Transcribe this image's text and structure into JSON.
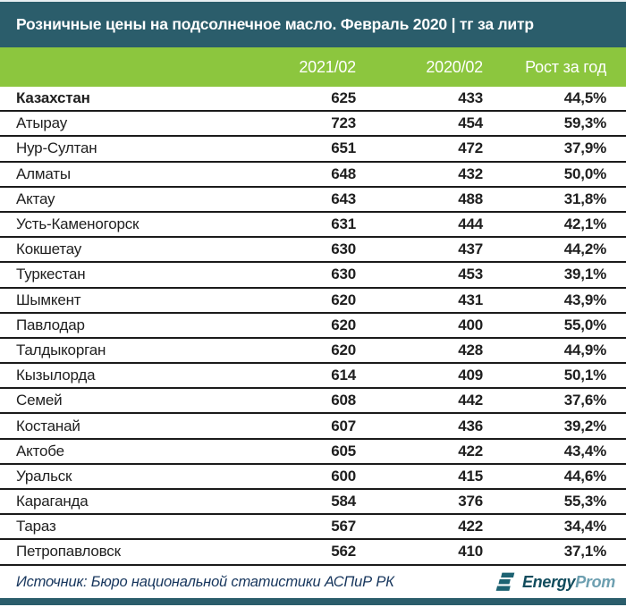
{
  "colors": {
    "teal_bar": "#2b5d6b",
    "header_green": "#8cc63e",
    "row_border": "#1b1b1b",
    "text": "#1f1f1f",
    "source_text": "#17365d",
    "logo_primary": "#114c5d",
    "logo_secondary": "#6d9fb0"
  },
  "footer": {
    "logo_primary": "Energy",
    "logo_secondary": "Prom"
  },
  "chart_data": {
    "type": "table",
    "title": "Розничные цены на подсолнечное масло. Февраль 2020 | тг за литр",
    "columns": [
      "",
      "2021/02",
      "2020/02",
      "Рост за год"
    ],
    "emphasized_row": 0,
    "rows": [
      [
        "Казахстан",
        625,
        433,
        "44,5%"
      ],
      [
        "Атырау",
        723,
        454,
        "59,3%"
      ],
      [
        "Нур-Султан",
        651,
        472,
        "37,9%"
      ],
      [
        "Алматы",
        648,
        432,
        "50,0%"
      ],
      [
        "Актау",
        643,
        488,
        "31,8%"
      ],
      [
        "Усть-Каменогорск",
        631,
        444,
        "42,1%"
      ],
      [
        "Кокшетау",
        630,
        437,
        "44,2%"
      ],
      [
        "Туркестан",
        630,
        453,
        "39,1%"
      ],
      [
        "Шымкент",
        620,
        431,
        "43,9%"
      ],
      [
        "Павлодар",
        620,
        400,
        "55,0%"
      ],
      [
        "Талдыкорган",
        620,
        428,
        "44,9%"
      ],
      [
        "Кызылорда",
        614,
        409,
        "50,1%"
      ],
      [
        "Семей",
        608,
        442,
        "37,6%"
      ],
      [
        "Костанай",
        607,
        436,
        "39,2%"
      ],
      [
        "Актобе",
        605,
        422,
        "43,4%"
      ],
      [
        "Уральск",
        600,
        415,
        "44,6%"
      ],
      [
        "Караганда",
        584,
        376,
        "55,3%"
      ],
      [
        "Тараз",
        567,
        422,
        "34,4%"
      ],
      [
        "Петропавловск",
        562,
        410,
        "37,1%"
      ]
    ],
    "source": "Источник: Бюро национальной статистики АСПиР РК"
  }
}
